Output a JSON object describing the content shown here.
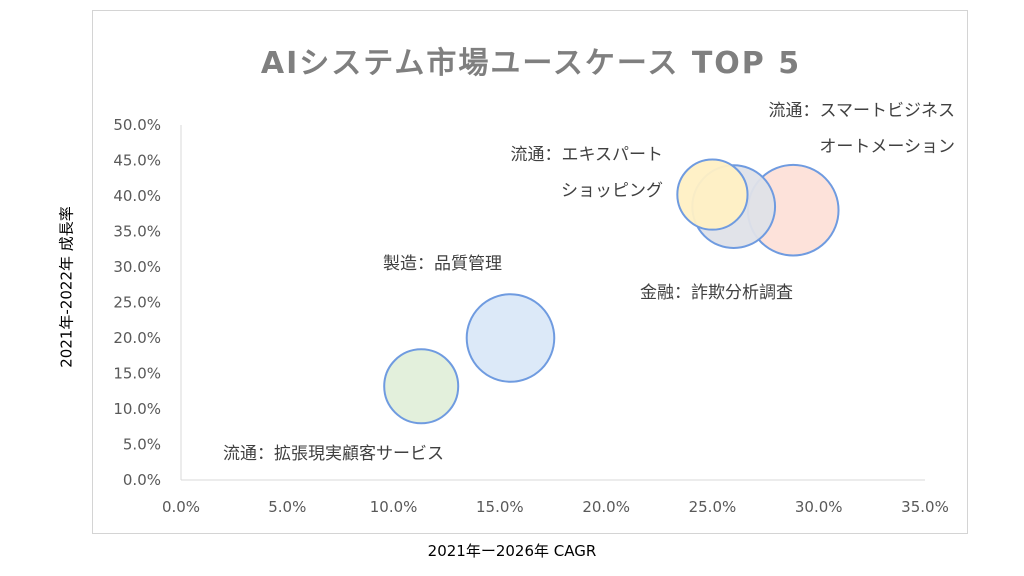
{
  "chart_data": {
    "type": "bubble",
    "title": "AIシステム市場ユースケース TOP 5",
    "xlabel": "2021年ー2026年 CAGR",
    "ylabel": "2021年-2022年 成長率",
    "xlim": [
      0,
      35
    ],
    "ylim": [
      0,
      50
    ],
    "x_ticks": [
      "0.0%",
      "5.0%",
      "10.0%",
      "15.0%",
      "20.0%",
      "25.0%",
      "30.0%",
      "35.0%"
    ],
    "y_ticks": [
      "0.0%",
      "5.0%",
      "10.0%",
      "15.0%",
      "20.0%",
      "25.0%",
      "30.0%",
      "35.0%",
      "40.0%",
      "45.0%",
      "50.0%"
    ],
    "grid": false,
    "points": [
      {
        "label_lines": [
          "流通：拡張現実顧客サービス"
        ],
        "x": 11.3,
        "y": 13.2,
        "size": 1.0,
        "color": "#e2efda"
      },
      {
        "label_lines": [
          "製造：品質管理"
        ],
        "x": 15.5,
        "y": 20.0,
        "size": 1.4,
        "color": "#dae8f8"
      },
      {
        "label_lines": [
          "金融：詐欺分析調査"
        ],
        "x": 26.0,
        "y": 38.5,
        "size": 1.25,
        "color": "#dfe2e8"
      },
      {
        "label_lines": [
          "流通：スマートビジネス",
          "オートメーション"
        ],
        "x": 28.8,
        "y": 38.0,
        "size": 1.5,
        "color": "#fde0d8"
      },
      {
        "label_lines": [
          "流通：エキスパート",
          "ショッピング"
        ],
        "x": 25.0,
        "y": 40.2,
        "size": 0.9,
        "color": "#fff0c4"
      }
    ]
  }
}
